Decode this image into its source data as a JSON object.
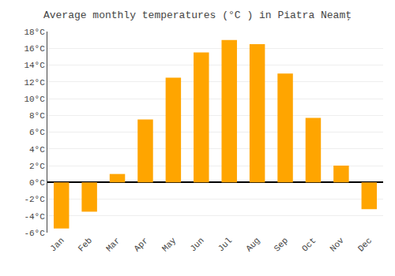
{
  "chart_data": {
    "type": "bar",
    "title": "Average monthly temperatures (°C ) in Piatra Neamţ",
    "categories": [
      "Jan",
      "Feb",
      "Mar",
      "Apr",
      "May",
      "Jun",
      "Jul",
      "Aug",
      "Sep",
      "Oct",
      "Nov",
      "Dec"
    ],
    "values": [
      -5.5,
      -3.5,
      1.0,
      7.5,
      12.5,
      15.5,
      17.0,
      16.5,
      13.0,
      7.7,
      2.0,
      -3.2
    ],
    "color": "#FFA500",
    "ylim": [
      -6,
      18
    ],
    "yticks": [
      {
        "value": -6,
        "label": "-6°C"
      },
      {
        "value": -4,
        "label": "-4°C"
      },
      {
        "value": -2,
        "label": "-2°C"
      },
      {
        "value": 0,
        "label": "0°C"
      },
      {
        "value": 2,
        "label": "2°C"
      },
      {
        "value": 4,
        "label": "4°C"
      },
      {
        "value": 6,
        "label": "6°C"
      },
      {
        "value": 8,
        "label": "8°C"
      },
      {
        "value": 10,
        "label": "10°C"
      },
      {
        "value": 12,
        "label": "12°C"
      },
      {
        "value": 14,
        "label": "14°C"
      },
      {
        "value": 16,
        "label": "16°C"
      },
      {
        "value": 18,
        "label": "18°C"
      }
    ],
    "grid": true
  }
}
